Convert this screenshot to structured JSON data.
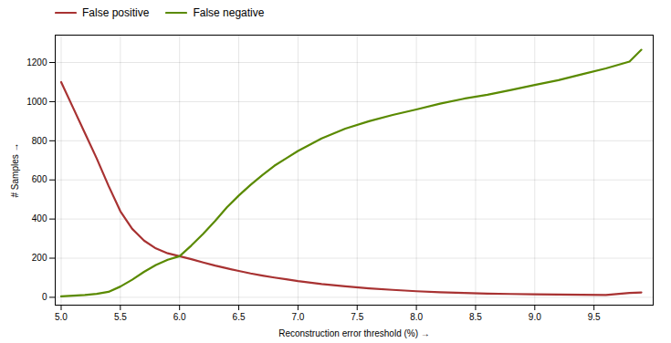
{
  "chart_data": {
    "type": "line",
    "xlabel": "Reconstruction error threshold (%)",
    "ylabel": "# Samples",
    "x": [
      5.0,
      5.1,
      5.2,
      5.3,
      5.4,
      5.5,
      5.6,
      5.7,
      5.8,
      5.9,
      6.0,
      6.1,
      6.2,
      6.3,
      6.4,
      6.5,
      6.6,
      6.7,
      6.8,
      6.9,
      7.0,
      7.2,
      7.4,
      7.6,
      7.8,
      8.0,
      8.2,
      8.4,
      8.6,
      8.8,
      9.0,
      9.2,
      9.4,
      9.6,
      9.8,
      9.9
    ],
    "series": [
      {
        "name": "False positive",
        "color": "#a83232",
        "values": [
          1100,
          970,
          840,
          710,
          570,
          440,
          350,
          290,
          250,
          225,
          210,
          195,
          178,
          162,
          148,
          135,
          122,
          111,
          101,
          92,
          83,
          68,
          56,
          46,
          38,
          31,
          26,
          22,
          19,
          17,
          15,
          14,
          13,
          12,
          22,
          25
        ]
      },
      {
        "name": "False negative",
        "color": "#5a8a00",
        "values": [
          5,
          8,
          12,
          18,
          28,
          55,
          90,
          130,
          165,
          192,
          210,
          265,
          325,
          390,
          460,
          520,
          575,
          625,
          672,
          710,
          748,
          812,
          862,
          900,
          932,
          960,
          990,
          1015,
          1035,
          1060,
          1085,
          1110,
          1140,
          1170,
          1205,
          1265
        ]
      }
    ],
    "xlim": [
      4.95,
      10.0
    ],
    "ylim": [
      -40,
      1340
    ],
    "xticks": [
      {
        "value": 5.0,
        "label": "5.0"
      },
      5.5,
      {
        "value": 6.0,
        "label": "6.0"
      },
      6.5,
      {
        "value": 7.0,
        "label": "7.0"
      },
      7.5,
      {
        "value": 8.0,
        "label": "8.0"
      },
      8.5,
      {
        "value": 9.0,
        "label": "9.0"
      },
      9.5
    ],
    "yticks": [
      0,
      200,
      400,
      600,
      800,
      1000,
      1200
    ],
    "grid": true,
    "legend": "upper left"
  }
}
